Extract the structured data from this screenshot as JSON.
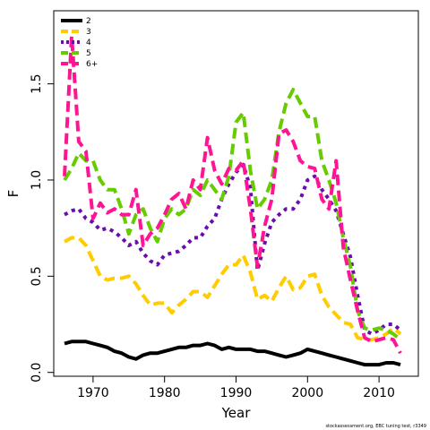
{
  "chart_data": {
    "type": "line",
    "title": "",
    "xlabel": "Year",
    "ylabel": "F",
    "xlim": [
      1964.5,
      2015.5
    ],
    "ylim": [
      -0.02,
      1.88
    ],
    "xticks": [
      1970,
      1980,
      1990,
      2000,
      2010
    ],
    "yticks": [
      0.0,
      0.5,
      1.0,
      1.5
    ],
    "ytick_labels": [
      "0.0",
      "0.5",
      "1.0",
      "1.5"
    ],
    "grid": false,
    "legend_position": "top-left",
    "footnote": "stockassessment.org, EBC tuning test, r3349",
    "x": [
      1966,
      1967,
      1968,
      1969,
      1970,
      1971,
      1972,
      1973,
      1974,
      1975,
      1976,
      1977,
      1978,
      1979,
      1980,
      1981,
      1982,
      1983,
      1984,
      1985,
      1986,
      1987,
      1988,
      1989,
      1990,
      1991,
      1992,
      1993,
      1994,
      1995,
      1996,
      1997,
      1998,
      1999,
      2000,
      2001,
      2002,
      2003,
      2004,
      2005,
      2006,
      2007,
      2008,
      2009,
      2010,
      2011,
      2012,
      2013
    ],
    "series": [
      {
        "name": "2",
        "color": "#000000",
        "width": 4,
        "dash": "",
        "values": [
          0.15,
          0.16,
          0.16,
          0.16,
          0.15,
          0.14,
          0.13,
          0.11,
          0.1,
          0.08,
          0.07,
          0.09,
          0.1,
          0.1,
          0.11,
          0.12,
          0.13,
          0.13,
          0.14,
          0.14,
          0.15,
          0.14,
          0.12,
          0.13,
          0.12,
          0.12,
          0.12,
          0.11,
          0.11,
          0.1,
          0.09,
          0.08,
          0.09,
          0.1,
          0.12,
          0.11,
          0.1,
          0.09,
          0.08,
          0.07,
          0.06,
          0.05,
          0.04,
          0.04,
          0.04,
          0.05,
          0.05,
          0.04
        ]
      },
      {
        "name": "3",
        "color": "#FFCC00",
        "width": 4,
        "dash": "12,6",
        "values": [
          0.68,
          0.7,
          0.7,
          0.66,
          0.58,
          0.5,
          0.48,
          0.49,
          0.49,
          0.5,
          0.46,
          0.4,
          0.35,
          0.36,
          0.36,
          0.31,
          0.35,
          0.38,
          0.42,
          0.42,
          0.39,
          0.45,
          0.51,
          0.56,
          0.56,
          0.61,
          0.52,
          0.38,
          0.4,
          0.37,
          0.44,
          0.5,
          0.43,
          0.44,
          0.5,
          0.51,
          0.4,
          0.34,
          0.3,
          0.26,
          0.25,
          0.18,
          0.17,
          0.17,
          0.18,
          0.2,
          0.23,
          0.2
        ]
      },
      {
        "name": "4",
        "color": "#6A0DAD",
        "width": 4,
        "dash": "4,5",
        "values": [
          0.82,
          0.84,
          0.85,
          0.8,
          0.78,
          0.74,
          0.75,
          0.73,
          0.7,
          0.66,
          0.68,
          0.62,
          0.58,
          0.56,
          0.61,
          0.62,
          0.63,
          0.66,
          0.7,
          0.7,
          0.76,
          0.8,
          0.9,
          0.98,
          1.04,
          1.08,
          0.96,
          0.53,
          0.67,
          0.78,
          0.82,
          0.85,
          0.85,
          0.9,
          1.0,
          1.02,
          0.95,
          0.9,
          0.84,
          0.72,
          0.6,
          0.4,
          0.22,
          0.2,
          0.22,
          0.25,
          0.25,
          0.22
        ]
      },
      {
        "name": "5",
        "color": "#66CC00",
        "width": 4,
        "dash": "12,6",
        "values": [
          1.0,
          1.06,
          1.14,
          1.1,
          1.1,
          1.0,
          0.95,
          0.95,
          0.85,
          0.72,
          0.82,
          0.85,
          0.75,
          0.68,
          0.8,
          0.85,
          0.82,
          0.85,
          0.95,
          0.92,
          1.0,
          0.95,
          0.9,
          1.02,
          1.3,
          1.35,
          1.05,
          0.85,
          0.9,
          1.0,
          1.25,
          1.4,
          1.47,
          1.4,
          1.33,
          1.33,
          1.1,
          1.0,
          0.88,
          0.7,
          0.55,
          0.32,
          0.23,
          0.22,
          0.23,
          0.22,
          0.2,
          0.17
        ]
      },
      {
        "name": "6+",
        "color": "#FF1493",
        "width": 4,
        "dash": "12,6",
        "values": [
          1.02,
          1.75,
          1.2,
          1.15,
          0.8,
          0.88,
          0.83,
          0.85,
          0.82,
          0.82,
          0.95,
          0.66,
          0.72,
          0.75,
          0.82,
          0.9,
          0.93,
          0.85,
          1.0,
          0.95,
          1.22,
          1.05,
          0.98,
          1.06,
          1.05,
          1.1,
          0.85,
          0.55,
          0.76,
          0.9,
          1.24,
          1.26,
          1.2,
          1.1,
          1.07,
          1.06,
          0.9,
          0.85,
          1.1,
          0.65,
          0.48,
          0.32,
          0.18,
          0.16,
          0.17,
          0.18,
          0.17,
          0.1
        ]
      }
    ]
  }
}
